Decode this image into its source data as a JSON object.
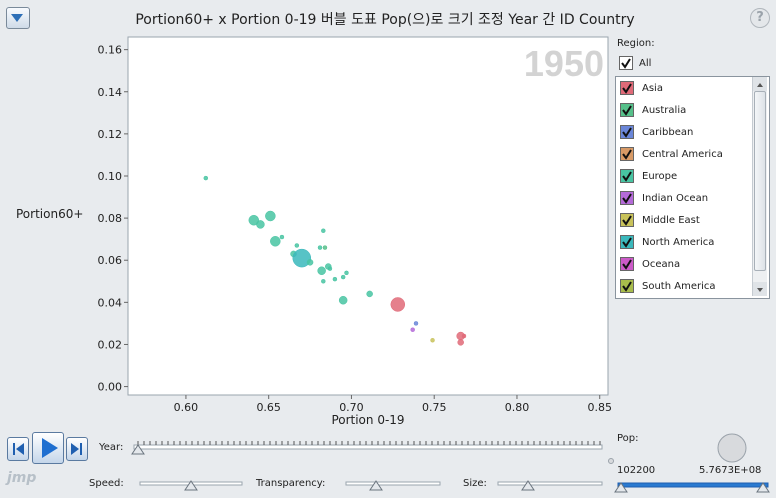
{
  "title": "Portion60+ x Portion 0-19 버블 도표 Pop(으)로 크기 조정 Year 간 ID Country",
  "help_label": "?",
  "year_watermark": "1950",
  "region_label": "Region:",
  "all_label": "All",
  "controls": {
    "year_label": "Year:",
    "speed_label": "Speed:",
    "transparency_label": "Transparency:",
    "size_label": "Size:",
    "pop_label": "Pop:",
    "pop_min": "102200",
    "pop_max": "5.7673E+08",
    "logo": "jmp"
  },
  "colors": {
    "plot_bg": "#ffffff",
    "watermark": "#d3d3d3",
    "accent": "#2a7ad0"
  },
  "chart_data": {
    "type": "scatter",
    "xlabel": "Portion 0-19",
    "ylabel": "Portion60+",
    "xlim": [
      0.565,
      0.855
    ],
    "ylim": [
      -0.004,
      0.166
    ],
    "xticks": [
      "0.60",
      "0.65",
      "0.70",
      "0.75",
      "0.80",
      "0.85"
    ],
    "yticks": [
      "0.00",
      "0.02",
      "0.04",
      "0.06",
      "0.08",
      "0.10",
      "0.12",
      "0.14",
      "0.16"
    ],
    "legend": [
      {
        "name": "Asia",
        "color": "#e06a78",
        "checked": true
      },
      {
        "name": "Australia",
        "color": "#56c08a",
        "checked": true
      },
      {
        "name": "Caribbean",
        "color": "#6a86d8",
        "checked": true
      },
      {
        "name": "Central America",
        "color": "#d89a66",
        "checked": true
      },
      {
        "name": "Europe",
        "color": "#48c4a2",
        "checked": true
      },
      {
        "name": "Indian Ocean",
        "color": "#b46ad8",
        "checked": true
      },
      {
        "name": "Middle East",
        "color": "#c8c25a",
        "checked": true
      },
      {
        "name": "North America",
        "color": "#3ab8bc",
        "checked": true
      },
      {
        "name": "Oceana",
        "color": "#cc5ac8",
        "checked": true
      },
      {
        "name": "South America",
        "color": "#a8bc4c",
        "checked": true
      }
    ],
    "points": [
      {
        "x": 0.612,
        "y": 0.099,
        "r": 2,
        "region": "Europe"
      },
      {
        "x": 0.641,
        "y": 0.079,
        "r": 5,
        "region": "Europe"
      },
      {
        "x": 0.645,
        "y": 0.077,
        "r": 4,
        "region": "Europe"
      },
      {
        "x": 0.651,
        "y": 0.081,
        "r": 5,
        "region": "Europe"
      },
      {
        "x": 0.654,
        "y": 0.069,
        "r": 5,
        "region": "Europe"
      },
      {
        "x": 0.658,
        "y": 0.071,
        "r": 2,
        "region": "Europe"
      },
      {
        "x": 0.665,
        "y": 0.063,
        "r": 3,
        "region": "Europe"
      },
      {
        "x": 0.667,
        "y": 0.067,
        "r": 2,
        "region": "Europe"
      },
      {
        "x": 0.67,
        "y": 0.061,
        "r": 9,
        "region": "North America"
      },
      {
        "x": 0.675,
        "y": 0.059,
        "r": 3,
        "region": "Europe"
      },
      {
        "x": 0.681,
        "y": 0.066,
        "r": 2,
        "region": "Europe"
      },
      {
        "x": 0.683,
        "y": 0.074,
        "r": 2,
        "region": "Europe"
      },
      {
        "x": 0.684,
        "y": 0.066,
        "r": 2,
        "region": "Australia"
      },
      {
        "x": 0.682,
        "y": 0.055,
        "r": 4,
        "region": "Europe"
      },
      {
        "x": 0.686,
        "y": 0.057,
        "r": 3,
        "region": "Europe"
      },
      {
        "x": 0.687,
        "y": 0.056,
        "r": 2,
        "region": "Europe"
      },
      {
        "x": 0.683,
        "y": 0.05,
        "r": 2,
        "region": "Europe"
      },
      {
        "x": 0.69,
        "y": 0.051,
        "r": 2,
        "region": "Europe"
      },
      {
        "x": 0.695,
        "y": 0.052,
        "r": 2,
        "region": "Europe"
      },
      {
        "x": 0.697,
        "y": 0.054,
        "r": 2,
        "region": "Europe"
      },
      {
        "x": 0.695,
        "y": 0.041,
        "r": 4,
        "region": "Europe"
      },
      {
        "x": 0.711,
        "y": 0.044,
        "r": 3,
        "region": "Europe"
      },
      {
        "x": 0.728,
        "y": 0.039,
        "r": 7,
        "region": "Asia"
      },
      {
        "x": 0.737,
        "y": 0.027,
        "r": 2,
        "region": "Indian Ocean"
      },
      {
        "x": 0.739,
        "y": 0.03,
        "r": 2,
        "region": "Caribbean"
      },
      {
        "x": 0.749,
        "y": 0.022,
        "r": 2,
        "region": "Middle East"
      },
      {
        "x": 0.766,
        "y": 0.024,
        "r": 4,
        "region": "Asia"
      },
      {
        "x": 0.766,
        "y": 0.021,
        "r": 3,
        "region": "Asia"
      },
      {
        "x": 0.768,
        "y": 0.024,
        "r": 2,
        "region": "Asia"
      }
    ]
  }
}
